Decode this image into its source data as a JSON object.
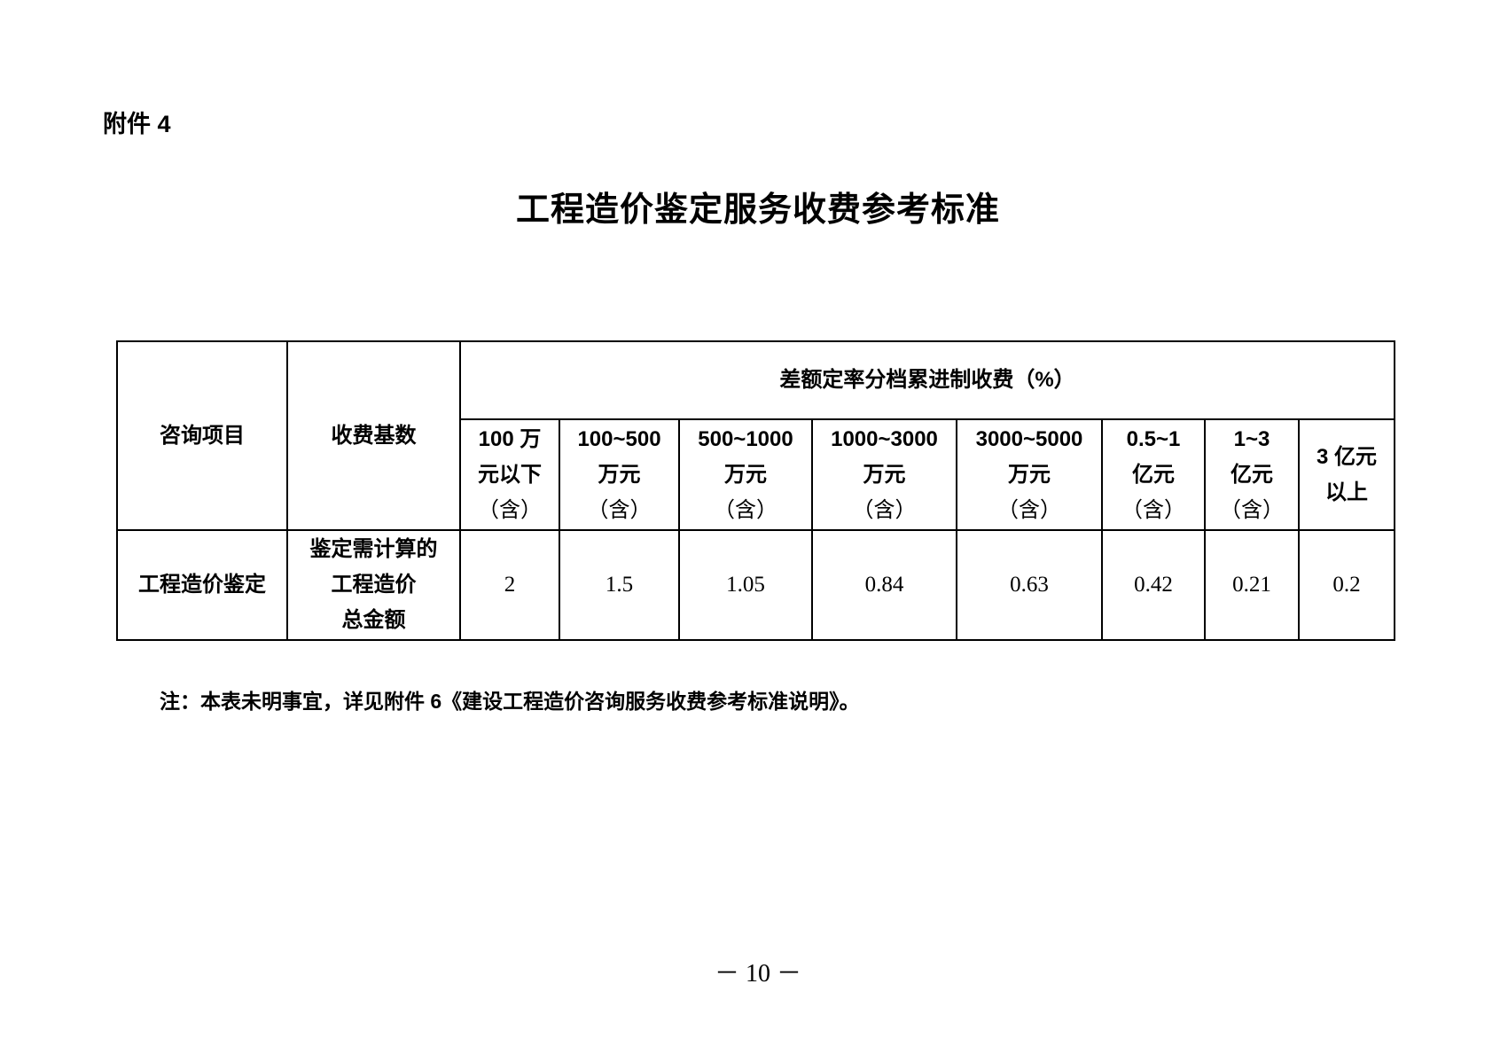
{
  "attachment_label": "附件 4",
  "title": "工程造价鉴定服务收费参考标准",
  "table": {
    "col_item": "咨询项目",
    "col_base": "收费基数",
    "group_header": "差额定率分档累进制收费（%）",
    "tiers": [
      [
        "100 万",
        "元以下",
        "（含）"
      ],
      [
        "100~500",
        "万元",
        "（含）"
      ],
      [
        "500~1000",
        "万元",
        "（含）"
      ],
      [
        "1000~3000",
        "万元",
        "（含）"
      ],
      [
        "3000~5000",
        "万元",
        "（含）"
      ],
      [
        "0.5~1",
        "亿元",
        "（含）"
      ],
      [
        "1~3",
        "亿元",
        "（含）"
      ],
      [
        "3 亿元",
        "以上"
      ]
    ],
    "rows": [
      {
        "item": "工程造价鉴定",
        "base": [
          "鉴定需计算的",
          "工程造价",
          "总金额"
        ],
        "rates": [
          "2",
          "1.5",
          "1.05",
          "0.84",
          "0.63",
          "0.42",
          "0.21",
          "0.2"
        ]
      }
    ]
  },
  "note": "注：本表未明事宜，详见附件 6《建设工程造价咨询服务收费参考标准说明》。",
  "page_number": "－ 10 －"
}
